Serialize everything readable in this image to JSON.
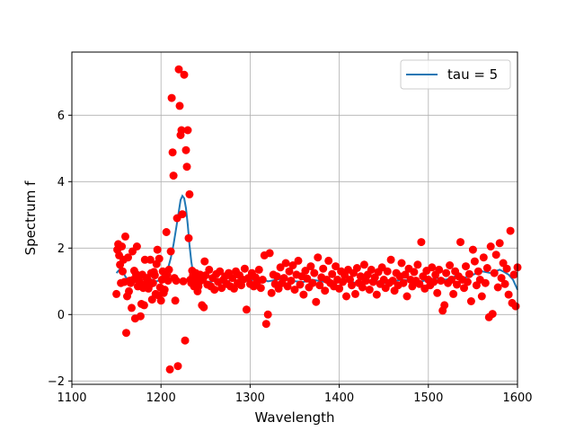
{
  "chart_data": {
    "type": "scatter",
    "title": "",
    "xlabel": "Wavelength",
    "ylabel": "Spectrum f",
    "xlim": [
      1100,
      1600
    ],
    "ylim": [
      -2.1,
      7.9
    ],
    "xticks": [
      1100,
      1200,
      1300,
      1400,
      1500,
      1600
    ],
    "yticks": [
      -2,
      0,
      2,
      4,
      6
    ],
    "grid": true,
    "legend_position": "top-right",
    "colors": {
      "points": "#ff0000",
      "line": "#1f77b4",
      "grid": "#b0b0b0"
    },
    "series": [
      {
        "name": "",
        "kind": "scatter",
        "points": [
          [
            1150,
            0.62
          ],
          [
            1151,
            1.95
          ],
          [
            1152,
            2.12
          ],
          [
            1153,
            1.78
          ],
          [
            1154,
            1.5
          ],
          [
            1155,
            0.95
          ],
          [
            1156,
            2.05
          ],
          [
            1157,
            1.3
          ],
          [
            1158,
            1.65
          ],
          [
            1159,
            0.98
          ],
          [
            1160,
            2.35
          ],
          [
            1161,
            -0.55
          ],
          [
            1162,
            0.55
          ],
          [
            1163,
            1.72
          ],
          [
            1164,
            0.7
          ],
          [
            1165,
            1.02
          ],
          [
            1166,
            0.95
          ],
          [
            1167,
            0.2
          ],
          [
            1168,
            1.9
          ],
          [
            1169,
            1.05
          ],
          [
            1170,
            1.32
          ],
          [
            1171,
            -0.12
          ],
          [
            1172,
            1.22
          ],
          [
            1173,
            2.05
          ],
          [
            1174,
            0.85
          ],
          [
            1175,
            1.15
          ],
          [
            1176,
            1.0
          ],
          [
            1177,
            -0.05
          ],
          [
            1178,
            0.32
          ],
          [
            1179,
            1.2
          ],
          [
            1180,
            0.8
          ],
          [
            1181,
            0.28
          ],
          [
            1182,
            1.65
          ],
          [
            1183,
            0.92
          ],
          [
            1184,
            1.1
          ],
          [
            1185,
            1.05
          ],
          [
            1186,
            0.78
          ],
          [
            1187,
            0.88
          ],
          [
            1188,
            1.65
          ],
          [
            1189,
            1.25
          ],
          [
            1190,
            0.45
          ],
          [
            1191,
            0.95
          ],
          [
            1192,
            1.28
          ],
          [
            1193,
            1.18
          ],
          [
            1194,
            0.62
          ],
          [
            1195,
            1.52
          ],
          [
            1196,
            1.95
          ],
          [
            1197,
            0.58
          ],
          [
            1198,
            1.68
          ],
          [
            1199,
            0.82
          ],
          [
            1200,
            0.42
          ],
          [
            1201,
            1.05
          ],
          [
            1202,
            1.3
          ],
          [
            1203,
            0.65
          ],
          [
            1204,
            0.75
          ],
          [
            1205,
            1.15
          ],
          [
            1206,
            2.48
          ],
          [
            1207,
            1.2
          ],
          [
            1208,
            1.02
          ],
          [
            1209,
            1.35
          ],
          [
            1210,
            -1.65
          ],
          [
            1211,
            1.9
          ],
          [
            1212,
            6.52
          ],
          [
            1213,
            4.88
          ],
          [
            1214,
            4.18
          ],
          [
            1215,
            1.1
          ],
          [
            1216,
            0.42
          ],
          [
            1217,
            1.02
          ],
          [
            1218,
            2.9
          ],
          [
            1219,
            -1.55
          ],
          [
            1220,
            7.38
          ],
          [
            1221,
            6.28
          ],
          [
            1222,
            5.4
          ],
          [
            1223,
            5.55
          ],
          [
            1224,
            3.02
          ],
          [
            1225,
            1.0
          ],
          [
            1226,
            7.22
          ],
          [
            1227,
            -0.78
          ],
          [
            1228,
            4.95
          ],
          [
            1229,
            4.45
          ],
          [
            1230,
            5.55
          ],
          [
            1231,
            2.3
          ],
          [
            1232,
            3.62
          ],
          [
            1233,
            1.05
          ],
          [
            1234,
            0.95
          ],
          [
            1235,
            1.32
          ],
          [
            1236,
            1.18
          ],
          [
            1237,
            0.85
          ],
          [
            1238,
            1.1
          ],
          [
            1239,
            1.25
          ],
          [
            1240,
            1.0
          ],
          [
            1241,
            0.7
          ],
          [
            1242,
            0.85
          ],
          [
            1243,
            0.98
          ],
          [
            1244,
            1.2
          ],
          [
            1245,
            1.15
          ],
          [
            1246,
            0.28
          ],
          [
            1247,
            1.05
          ],
          [
            1248,
            0.22
          ],
          [
            1249,
            1.6
          ],
          [
            1250,
            1.18
          ],
          [
            1252,
            0.9
          ],
          [
            1254,
            1.35
          ],
          [
            1256,
            0.85
          ],
          [
            1258,
            1.1
          ],
          [
            1260,
            0.75
          ],
          [
            1262,
            1.22
          ],
          [
            1264,
            0.98
          ],
          [
            1266,
            1.3
          ],
          [
            1268,
            0.8
          ],
          [
            1270,
            1.05
          ],
          [
            1272,
            1.15
          ],
          [
            1274,
            0.92
          ],
          [
            1276,
            1.25
          ],
          [
            1278,
            0.85
          ],
          [
            1280,
            1.1
          ],
          [
            1282,
            0.78
          ],
          [
            1284,
            1.3
          ],
          [
            1286,
            0.95
          ],
          [
            1288,
            1.18
          ],
          [
            1290,
            0.88
          ],
          [
            1292,
            1.05
          ],
          [
            1294,
            1.38
          ],
          [
            1296,
            0.15
          ],
          [
            1298,
            1.1
          ],
          [
            1300,
            0.92
          ],
          [
            1302,
            1.25
          ],
          [
            1304,
            0.85
          ],
          [
            1306,
            1.12
          ],
          [
            1308,
            0.98
          ],
          [
            1310,
            1.35
          ],
          [
            1312,
            0.8
          ],
          [
            1314,
            1.05
          ],
          [
            1316,
            1.78
          ],
          [
            1318,
            -0.28
          ],
          [
            1320,
            0.0
          ],
          [
            1322,
            1.85
          ],
          [
            1324,
            0.65
          ],
          [
            1326,
            1.2
          ],
          [
            1328,
            0.92
          ],
          [
            1330,
            1.15
          ],
          [
            1332,
            0.78
          ],
          [
            1334,
            1.42
          ],
          [
            1336,
            0.95
          ],
          [
            1338,
            1.1
          ],
          [
            1340,
            1.55
          ],
          [
            1342,
            0.85
          ],
          [
            1344,
            1.3
          ],
          [
            1346,
            1.02
          ],
          [
            1348,
            1.48
          ],
          [
            1350,
            0.75
          ],
          [
            1352,
            1.2
          ],
          [
            1354,
            1.62
          ],
          [
            1356,
            0.9
          ],
          [
            1358,
            1.15
          ],
          [
            1360,
            0.6
          ],
          [
            1362,
            1.32
          ],
          [
            1364,
            1.08
          ],
          [
            1366,
            0.82
          ],
          [
            1368,
            1.45
          ],
          [
            1370,
            0.95
          ],
          [
            1372,
            1.25
          ],
          [
            1374,
            0.38
          ],
          [
            1376,
            1.72
          ],
          [
            1378,
            0.88
          ],
          [
            1380,
            1.12
          ],
          [
            1382,
            1.38
          ],
          [
            1384,
            0.72
          ],
          [
            1386,
            1.05
          ],
          [
            1388,
            1.62
          ],
          [
            1390,
            0.95
          ],
          [
            1392,
            1.22
          ],
          [
            1394,
            0.85
          ],
          [
            1396,
            1.45
          ],
          [
            1398,
            1.05
          ],
          [
            1400,
            0.78
          ],
          [
            1402,
            1.3
          ],
          [
            1404,
            0.98
          ],
          [
            1406,
            1.18
          ],
          [
            1408,
            0.55
          ],
          [
            1410,
            1.35
          ],
          [
            1412,
            1.05
          ],
          [
            1414,
            0.88
          ],
          [
            1416,
            1.25
          ],
          [
            1418,
            0.62
          ],
          [
            1420,
            1.4
          ],
          [
            1422,
            0.95
          ],
          [
            1424,
            1.15
          ],
          [
            1426,
            0.82
          ],
          [
            1428,
            1.5
          ],
          [
            1430,
            1.02
          ],
          [
            1432,
            1.2
          ],
          [
            1434,
            0.75
          ],
          [
            1436,
            1.35
          ],
          [
            1438,
            0.98
          ],
          [
            1440,
            1.12
          ],
          [
            1442,
            0.6
          ],
          [
            1444,
            1.28
          ],
          [
            1446,
            0.92
          ],
          [
            1448,
            1.42
          ],
          [
            1450,
            1.05
          ],
          [
            1452,
            0.8
          ],
          [
            1454,
            1.3
          ],
          [
            1456,
            0.95
          ],
          [
            1458,
            1.65
          ],
          [
            1460,
            1.02
          ],
          [
            1462,
            0.72
          ],
          [
            1464,
            1.25
          ],
          [
            1466,
            0.88
          ],
          [
            1468,
            1.15
          ],
          [
            1470,
            1.55
          ],
          [
            1472,
            0.95
          ],
          [
            1474,
            1.2
          ],
          [
            1476,
            0.55
          ],
          [
            1478,
            1.38
          ],
          [
            1480,
            1.05
          ],
          [
            1482,
            0.85
          ],
          [
            1484,
            1.28
          ],
          [
            1486,
            1.02
          ],
          [
            1488,
            1.5
          ],
          [
            1490,
            0.92
          ],
          [
            1492,
            2.18
          ],
          [
            1494,
            1.15
          ],
          [
            1496,
            0.78
          ],
          [
            1498,
            1.32
          ],
          [
            1500,
            1.05
          ],
          [
            1502,
            0.88
          ],
          [
            1504,
            1.42
          ],
          [
            1506,
            0.98
          ],
          [
            1508,
            1.2
          ],
          [
            1510,
            0.65
          ],
          [
            1512,
            1.35
          ],
          [
            1514,
            1.02
          ],
          [
            1516,
            0.12
          ],
          [
            1518,
            0.28
          ],
          [
            1520,
            1.25
          ],
          [
            1522,
            0.95
          ],
          [
            1524,
            1.48
          ],
          [
            1526,
            1.05
          ],
          [
            1528,
            0.62
          ],
          [
            1530,
            1.3
          ],
          [
            1532,
            0.9
          ],
          [
            1534,
            1.15
          ],
          [
            1536,
            2.18
          ],
          [
            1538,
            1.05
          ],
          [
            1540,
            0.8
          ],
          [
            1542,
            1.45
          ],
          [
            1544,
            0.98
          ],
          [
            1546,
            1.22
          ],
          [
            1548,
            0.4
          ],
          [
            1550,
            1.95
          ],
          [
            1552,
            1.6
          ],
          [
            1554,
            0.88
          ],
          [
            1556,
            1.3
          ],
          [
            1558,
            1.05
          ],
          [
            1560,
            0.55
          ],
          [
            1562,
            1.72
          ],
          [
            1564,
            0.95
          ],
          [
            1566,
            1.4
          ],
          [
            1568,
            -0.08
          ],
          [
            1570,
            2.05
          ],
          [
            1572,
            0.02
          ],
          [
            1574,
            1.25
          ],
          [
            1576,
            1.8
          ],
          [
            1578,
            0.82
          ],
          [
            1580,
            2.15
          ],
          [
            1582,
            1.1
          ],
          [
            1584,
            1.55
          ],
          [
            1586,
            0.92
          ],
          [
            1588,
            1.38
          ],
          [
            1590,
            0.6
          ],
          [
            1592,
            2.52
          ],
          [
            1594,
            0.35
          ],
          [
            1596,
            1.2
          ],
          [
            1598,
            0.25
          ],
          [
            1600,
            1.42
          ]
        ]
      },
      {
        "name": "tau = 5",
        "kind": "line",
        "x": [
          1150,
          1155,
          1160,
          1165,
          1170,
          1175,
          1180,
          1185,
          1190,
          1195,
          1200,
          1205,
          1208,
          1211,
          1214,
          1217,
          1220,
          1222,
          1224,
          1226,
          1228,
          1230,
          1232,
          1234,
          1236,
          1238,
          1240,
          1243,
          1246,
          1250,
          1255,
          1260,
          1270,
          1280,
          1290,
          1300,
          1310,
          1320,
          1330,
          1340,
          1350,
          1360,
          1370,
          1380,
          1390,
          1400,
          1410,
          1420,
          1430,
          1440,
          1450,
          1460,
          1470,
          1480,
          1490,
          1500,
          1510,
          1520,
          1530,
          1540,
          1550,
          1560,
          1570,
          1580,
          1585,
          1590,
          1595,
          1600
        ],
        "y": [
          1.25,
          1.4,
          1.15,
          0.95,
          1.0,
          1.05,
          0.95,
          0.95,
          1.05,
          1.0,
          1.05,
          1.15,
          1.4,
          1.7,
          2.1,
          2.6,
          3.1,
          3.45,
          3.57,
          3.5,
          3.2,
          2.7,
          2.1,
          1.6,
          1.25,
          1.1,
          0.98,
          0.92,
          0.95,
          1.0,
          0.98,
          1.02,
          0.95,
          1.05,
          1.0,
          1.02,
          1.1,
          1.0,
          1.05,
          1.1,
          1.0,
          0.98,
          1.05,
          1.0,
          0.95,
          1.0,
          1.05,
          0.92,
          0.98,
          1.02,
          0.95,
          1.0,
          1.05,
          1.02,
          0.98,
          1.05,
          1.1,
          1.05,
          1.15,
          1.1,
          1.2,
          1.3,
          1.25,
          1.35,
          1.28,
          1.2,
          1.05,
          0.75
        ]
      }
    ]
  }
}
